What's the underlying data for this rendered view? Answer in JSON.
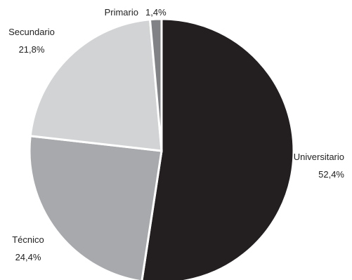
{
  "chart_data": {
    "type": "pie",
    "title": "",
    "slices": [
      {
        "label": "Universitario",
        "value": 52.4,
        "value_label": "52,4%",
        "color": "#231f20"
      },
      {
        "label": "Técnico",
        "value": 24.4,
        "value_label": "24,4%",
        "color": "#a7a9ac"
      },
      {
        "label": "Secundario",
        "value": 21.8,
        "value_label": "21,8%",
        "color": "#d1d3d4"
      },
      {
        "label": "Primario",
        "value": 1.4,
        "value_label": "1,4%",
        "color": "#808285"
      }
    ],
    "start_angle": "12 o'clock",
    "direction": "clockwise",
    "slice_border_color": "#ffffff",
    "legend": "none"
  }
}
